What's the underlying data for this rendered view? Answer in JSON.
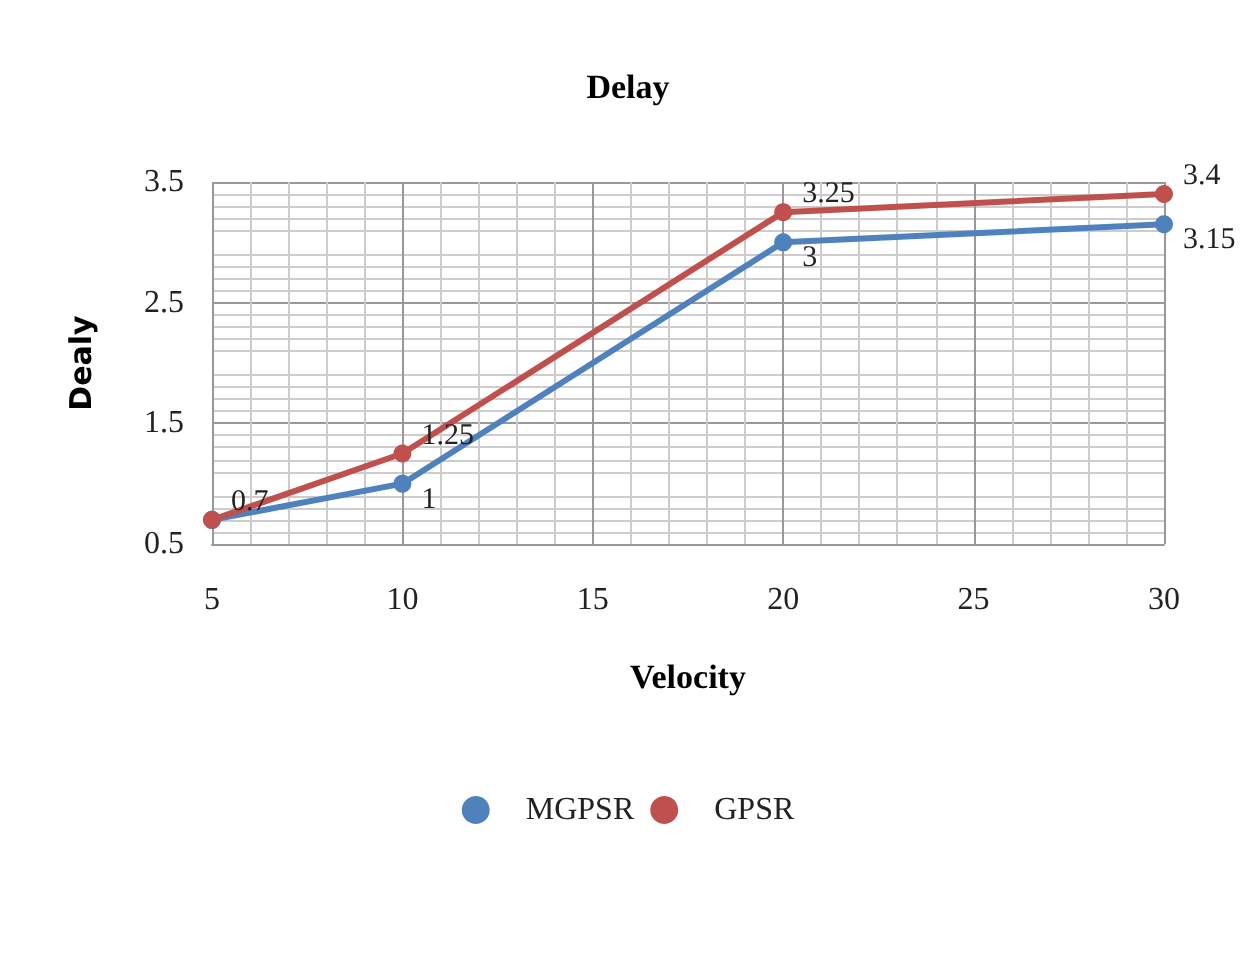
{
  "chart_data": {
    "type": "line",
    "title": "Delay",
    "xlabel": "Velocity",
    "ylabel": "Dealy",
    "x": [
      5,
      10,
      20,
      30
    ],
    "series": [
      {
        "name": "MGPSR",
        "color": "#4f81bd",
        "values": [
          0.7,
          1,
          3,
          3.15
        ],
        "value_labels": [
          null,
          "1",
          "3",
          "3.15"
        ]
      },
      {
        "name": "GPSR",
        "color": "#c0504d",
        "values": [
          0.7,
          1.25,
          3.25,
          3.4
        ],
        "value_labels": [
          "0.7",
          "1.25",
          "3.25",
          "3.4"
        ]
      }
    ],
    "xlim": [
      5,
      30
    ],
    "xticks": [
      5,
      10,
      15,
      20,
      25,
      30
    ],
    "ylim": [
      0.5,
      3.5
    ],
    "yticks": [
      0.5,
      1.5,
      2.5,
      3.5
    ],
    "grid": true,
    "legend": "bottom",
    "marker": "circle",
    "line_style": "solid"
  }
}
